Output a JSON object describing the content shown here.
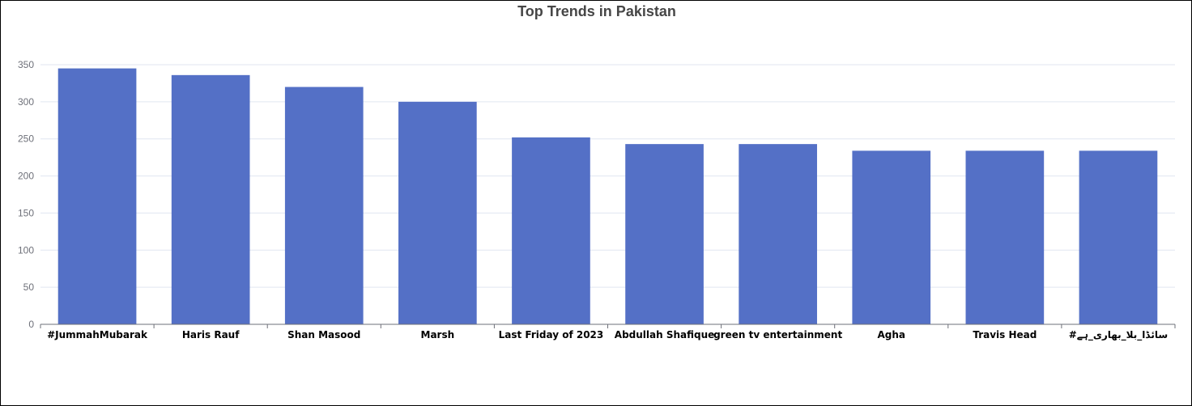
{
  "chart_data": {
    "type": "bar",
    "title": "Top Trends in Pakistan",
    "categories": [
      "#JummahMubarak",
      "Haris Rauf",
      "Shan Masood",
      "Marsh",
      "Last Friday of 2023",
      "Abdullah Shafique",
      "green tv entertainment",
      "Agha",
      "Travis Head",
      "#سائڈا_بلا_بھاری_ہے"
    ],
    "values": [
      345,
      336,
      320,
      300,
      252,
      243,
      243,
      234,
      234,
      234
    ],
    "ylim": [
      0,
      350
    ],
    "yticks": [
      0,
      50,
      100,
      150,
      200,
      250,
      300,
      350
    ],
    "xlabel": "",
    "ylabel": "",
    "grid": true,
    "colors": {
      "bar": "#5470c6",
      "grid": "#e0e6f1",
      "axis": "#6e7079",
      "title": "#464646"
    }
  }
}
